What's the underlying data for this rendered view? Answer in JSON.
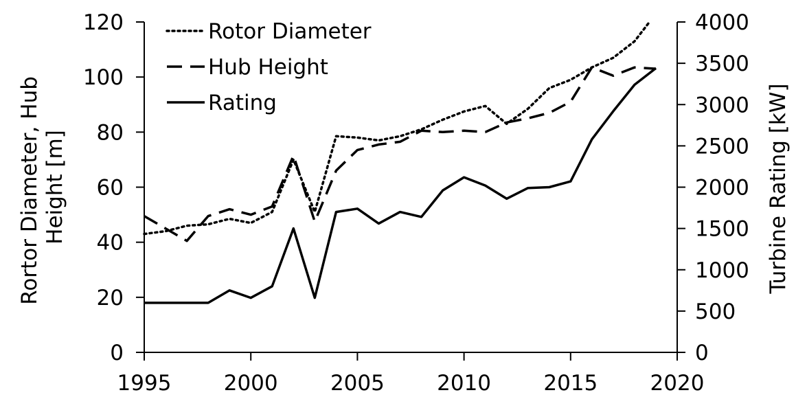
{
  "chart_data": {
    "type": "line",
    "title": "",
    "xlabel": "",
    "ylabel_left": [
      "Rortor Diameter, Hub",
      "Height [m]"
    ],
    "ylabel_right": "Turbine Rating [kW]",
    "xlim": [
      1995,
      2020
    ],
    "ylim_left": [
      0,
      120
    ],
    "ylim_right": [
      0,
      4000
    ],
    "x_ticks": [
      1995,
      2000,
      2005,
      2010,
      2015,
      2020
    ],
    "y_left_ticks": [
      0,
      20,
      40,
      60,
      80,
      100,
      120
    ],
    "y_right_ticks": [
      0,
      500,
      1000,
      1500,
      2000,
      2500,
      3000,
      3500,
      4000
    ],
    "grid": false,
    "legend_position": "top-left",
    "series": [
      {
        "name": "Rotor Diameter",
        "style": "dotted",
        "axis": "left",
        "x": [
          1995,
          1996,
          1997,
          1998,
          1999,
          2000,
          2001,
          2002,
          2003,
          2004,
          2005,
          2006,
          2007,
          2008,
          2009,
          2010,
          2011,
          2012,
          2013,
          2014,
          2015,
          2016,
          2017,
          2018,
          2018.7
        ],
        "values": [
          43,
          44,
          46,
          46.5,
          48.5,
          47,
          51,
          70,
          51,
          78.5,
          78,
          77,
          78.5,
          81,
          84.5,
          87.5,
          89.5,
          83,
          88.5,
          96,
          99,
          103.5,
          107,
          113,
          120
        ]
      },
      {
        "name": "Hub Height",
        "style": "dashed",
        "axis": "left",
        "x": [
          1995,
          1996,
          1997,
          1998,
          1999,
          2000,
          2001,
          2002,
          2003,
          2004,
          2005,
          2006,
          2007,
          2008,
          2009,
          2010,
          2011,
          2012,
          2013,
          2014,
          2015,
          2016,
          2017,
          2018,
          2019
        ],
        "values": [
          49.5,
          45,
          40.5,
          49.5,
          52,
          50,
          53,
          71.5,
          47.5,
          66,
          73.5,
          75.5,
          76.5,
          80.5,
          80,
          80.5,
          80,
          83.5,
          85,
          87,
          91,
          103.5,
          100.5,
          103.5,
          103
        ]
      },
      {
        "name": "Rating",
        "style": "solid",
        "axis": "right",
        "x": [
          1995,
          1996,
          1997,
          1998,
          1999,
          2000,
          2001,
          2002,
          2003,
          2004,
          2005,
          2006,
          2007,
          2008,
          2009,
          2010,
          2011,
          2012,
          2013,
          2014,
          2015,
          2016,
          2017,
          2018,
          2019
        ],
        "values": [
          600,
          600,
          600,
          600,
          750,
          660,
          800,
          1500,
          660,
          1700,
          1740,
          1560,
          1700,
          1640,
          1960,
          2120,
          2020,
          1860,
          1990,
          2000,
          2070,
          2580,
          2920,
          3240,
          3440
        ]
      }
    ]
  }
}
